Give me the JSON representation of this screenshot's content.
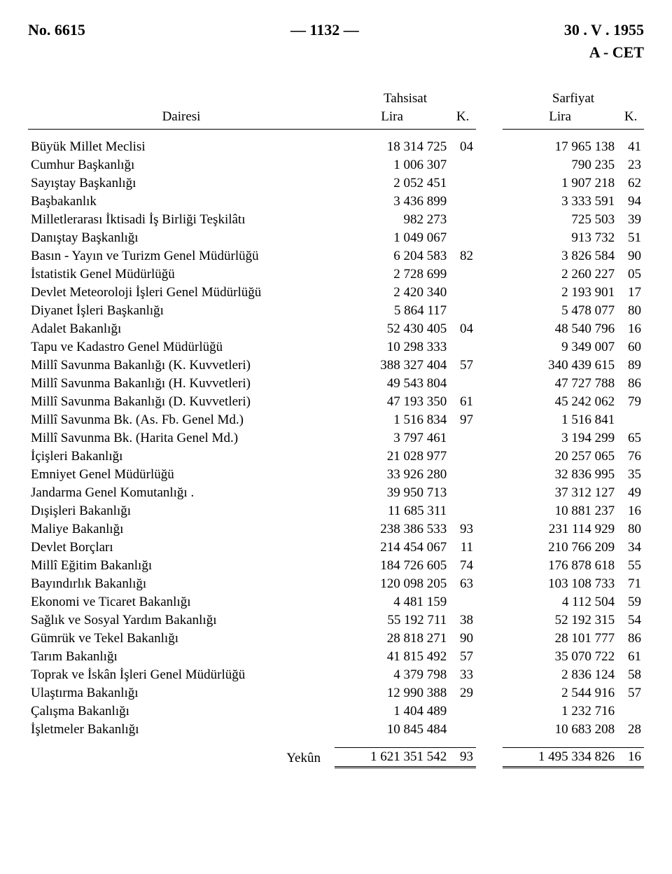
{
  "header": {
    "left": "No. 6615",
    "center": "— 1132 —",
    "right": "30 . V . 1955",
    "sub_right": "A - CET"
  },
  "columns": {
    "dept": "Dairesi",
    "tahsisat": "Tahsisat",
    "sarfiyat": "Sarfiyat",
    "lira": "Lira",
    "k": "K."
  },
  "rows": [
    {
      "label": "Büyük Millet Meclisi",
      "t": "18 314 725",
      "tk": "04",
      "s": "17 965 138",
      "sk": "41"
    },
    {
      "label": "Cumhur Başkanlığı",
      "t": "1 006 307",
      "tk": "",
      "s": "790 235",
      "sk": "23"
    },
    {
      "label": "Sayıştay Başkanlığı",
      "t": "2 052 451",
      "tk": "",
      "s": "1 907 218",
      "sk": "62"
    },
    {
      "label": "Başbakanlık",
      "t": "3 436 899",
      "tk": "",
      "s": "3 333 591",
      "sk": "94"
    },
    {
      "label": "Milletlerarası İktisadi İş Birliği Teşkilâtı",
      "t": "982 273",
      "tk": "",
      "s": "725 503",
      "sk": "39"
    },
    {
      "label": "Danıştay Başkanlığı",
      "t": "1 049 067",
      "tk": "",
      "s": "913 732",
      "sk": "51"
    },
    {
      "label": "Basın - Yayın ve Turizm Genel Müdürlüğü",
      "t": "6 204 583",
      "tk": "82",
      "s": "3 826 584",
      "sk": "90"
    },
    {
      "label": "İstatistik Genel Müdürlüğü",
      "t": "2 728 699",
      "tk": "",
      "s": "2 260 227",
      "sk": "05"
    },
    {
      "label": "Devlet Meteoroloji İşleri Genel Müdürlüğü",
      "t": "2 420 340",
      "tk": "",
      "s": "2 193 901",
      "sk": "17"
    },
    {
      "label": "Diyanet İşleri Başkanlığı",
      "t": "5 864 117",
      "tk": "",
      "s": "5 478 077",
      "sk": "80"
    },
    {
      "label": "Adalet Bakanlığı",
      "t": "52 430 405",
      "tk": "04",
      "s": "48 540 796",
      "sk": "16"
    },
    {
      "label": "Tapu ve Kadastro Genel Müdürlüğü",
      "t": "10 298 333",
      "tk": "",
      "s": "9 349 007",
      "sk": "60"
    },
    {
      "label": "Millî Savunma Bakanlığı (K. Kuvvetleri)",
      "t": "388 327 404",
      "tk": "57",
      "s": "340 439 615",
      "sk": "89"
    },
    {
      "label": "Millî Savunma Bakanlığı (H. Kuvvetleri)",
      "t": "49 543 804",
      "tk": "",
      "s": "47 727 788",
      "sk": "86"
    },
    {
      "label": "Millî Savunma Bakanlığı (D. Kuvvetleri)",
      "t": "47 193 350",
      "tk": "61",
      "s": "45 242 062",
      "sk": "79"
    },
    {
      "label": "Millî Savunma Bk. (As. Fb. Genel Md.)",
      "t": "1 516 834",
      "tk": "97",
      "s": "1 516 841",
      "sk": ""
    },
    {
      "label": "Millî Savunma Bk. (Harita Genel Md.)",
      "t": "3 797 461",
      "tk": "",
      "s": "3 194 299",
      "sk": "65"
    },
    {
      "label": "İçişleri Bakanlığı",
      "t": "21 028 977",
      "tk": "",
      "s": "20 257 065",
      "sk": "76"
    },
    {
      "label": "Emniyet Genel Müdürlüğü",
      "t": "33 926 280",
      "tk": "",
      "s": "32 836 995",
      "sk": "35"
    },
    {
      "label": "Jandarma Genel Komutanlığı  .",
      "t": "39 950 713",
      "tk": "",
      "s": "37 312 127",
      "sk": "49"
    },
    {
      "label": "Dışişleri Bakanlığı",
      "t": "11 685 311",
      "tk": "",
      "s": "10 881 237",
      "sk": "16"
    },
    {
      "label": "Maliye Bakanlığı",
      "t": "238 386 533",
      "tk": "93",
      "s": "231 114 929",
      "sk": "80"
    },
    {
      "label": "Devlet Borçları",
      "t": "214 454 067",
      "tk": "11",
      "s": "210 766 209",
      "sk": "34"
    },
    {
      "label": "Millî Eğitim Bakanlığı",
      "t": "184 726 605",
      "tk": "74",
      "s": "176 878 618",
      "sk": "55"
    },
    {
      "label": "Bayındırlık Bakanlığı",
      "t": "120 098 205",
      "tk": "63",
      "s": "103 108 733",
      "sk": "71"
    },
    {
      "label": "Ekonomi ve Ticaret Bakanlığı",
      "t": "4 481 159",
      "tk": "",
      "s": "4 112 504",
      "sk": "59"
    },
    {
      "label": "Sağlık ve Sosyal Yardım Bakanlığı",
      "t": "55 192 711",
      "tk": "38",
      "s": "52 192 315",
      "sk": "54"
    },
    {
      "label": "Gümrük ve Tekel Bakanlığı",
      "t": "28 818 271",
      "tk": "90",
      "s": "28 101 777",
      "sk": "86"
    },
    {
      "label": "Tarım Bakanlığı",
      "t": "41 815 492",
      "tk": "57",
      "s": "35 070 722",
      "sk": "61"
    },
    {
      "label": "Toprak ve İskân İşleri Genel Müdürlüğü",
      "t": "4 379 798",
      "tk": "33",
      "s": "2 836 124",
      "sk": "58"
    },
    {
      "label": "Ulaştırma Bakanlığı",
      "t": "12 990 388",
      "tk": "29",
      "s": "2 544 916",
      "sk": "57"
    },
    {
      "label": "Çalışma Bakanlığı",
      "t": "1 404 489",
      "tk": "",
      "s": "1 232 716",
      "sk": ""
    },
    {
      "label": "İşletmeler Bakanlığı",
      "t": "10 845 484",
      "tk": "",
      "s": "10 683 208",
      "sk": "28"
    }
  ],
  "total": {
    "label": "Yekûn",
    "t": "1 621 351 542",
    "tk": "93",
    "s": "1 495 334 826",
    "sk": "16"
  }
}
